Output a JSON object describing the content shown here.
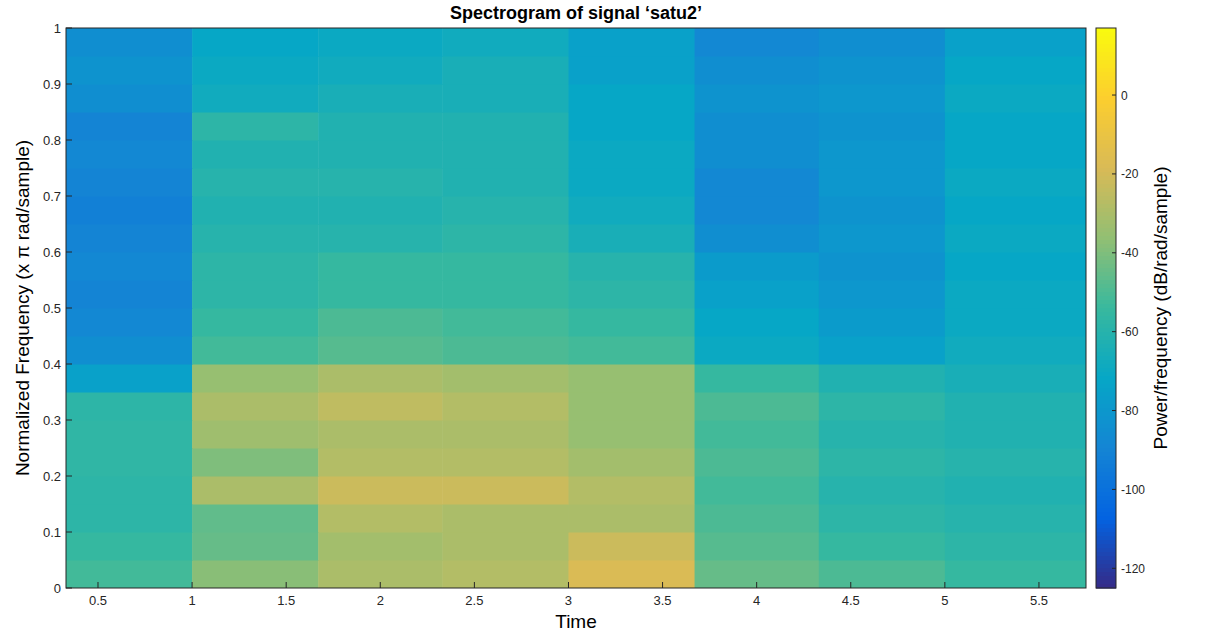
{
  "chart_data": {
    "type": "heatmap",
    "title": "Spectrogram of signal ‘satu2’",
    "x_label": "Time",
    "y_label": "Normalized Frequency (x π rad/sample)",
    "colorbar_label": "Power/frequency (dB/rad/sample)",
    "xlim": [
      0.33,
      5.75
    ],
    "xticks": [
      0.5,
      1,
      1.5,
      2,
      2.5,
      3,
      3.5,
      4,
      4.5,
      5,
      5.5
    ],
    "ylim": [
      0,
      1
    ],
    "yticks": [
      0,
      0.1,
      0.2,
      0.3,
      0.4,
      0.5,
      0.6,
      0.7,
      0.8,
      0.9,
      1
    ],
    "x_bins": [
      0.33,
      1,
      1.67,
      2.33,
      3,
      3.67,
      4.33,
      5,
      5.75
    ],
    "y_bins": [
      0,
      0.05,
      0.1,
      0.15,
      0.2,
      0.25,
      0.3,
      0.35,
      0.4,
      0.45,
      0.5,
      0.55,
      0.6,
      0.65,
      0.7,
      0.75,
      0.8,
      0.85,
      0.9,
      0.95,
      1
    ],
    "cells": [
      [
        -52,
        -38,
        -30,
        -28,
        -18,
        -45,
        -50,
        -55
      ],
      [
        -55,
        -45,
        -32,
        -30,
        -22,
        -48,
        -55,
        -58
      ],
      [
        -58,
        -46,
        -28,
        -30,
        -30,
        -50,
        -58,
        -60
      ],
      [
        -58,
        -30,
        -22,
        -22,
        -28,
        -52,
        -60,
        -62
      ],
      [
        -57,
        -40,
        -28,
        -28,
        -32,
        -50,
        -58,
        -60
      ],
      [
        -57,
        -33,
        -30,
        -30,
        -35,
        -52,
        -60,
        -62
      ],
      [
        -58,
        -30,
        -25,
        -28,
        -35,
        -50,
        -58,
        -62
      ],
      [
        -75,
        -35,
        -30,
        -32,
        -35,
        -55,
        -62,
        -65
      ],
      [
        -85,
        -52,
        -48,
        -50,
        -52,
        -70,
        -75,
        -68
      ],
      [
        -88,
        -55,
        -50,
        -52,
        -55,
        -72,
        -78,
        -70
      ],
      [
        -90,
        -58,
        -55,
        -55,
        -58,
        -75,
        -80,
        -70
      ],
      [
        -88,
        -58,
        -55,
        -55,
        -60,
        -78,
        -82,
        -72
      ],
      [
        -90,
        -60,
        -60,
        -58,
        -65,
        -85,
        -80,
        -70
      ],
      [
        -92,
        -62,
        -62,
        -60,
        -68,
        -88,
        -82,
        -72
      ],
      [
        -90,
        -60,
        -60,
        -62,
        -70,
        -88,
        -80,
        -70
      ],
      [
        -88,
        -62,
        -62,
        -62,
        -70,
        -85,
        -80,
        -72
      ],
      [
        -90,
        -58,
        -62,
        -62,
        -72,
        -85,
        -82,
        -72
      ],
      [
        -85,
        -68,
        -65,
        -65,
        -72,
        -82,
        -80,
        -70
      ],
      [
        -82,
        -70,
        -68,
        -65,
        -75,
        -85,
        -82,
        -72
      ],
      [
        -85,
        -72,
        -70,
        -68,
        -75,
        -88,
        -85,
        -75
      ]
    ],
    "clim": [
      -125,
      17
    ],
    "cticks": [
      -120,
      -100,
      -80,
      -60,
      -40,
      -20,
      0
    ],
    "grid": false
  }
}
